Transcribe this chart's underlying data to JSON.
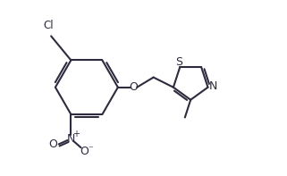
{
  "background_color": "#ffffff",
  "line_color": "#2c2c3e",
  "line_width": 1.5,
  "figsize": [
    3.21,
    1.97
  ],
  "dpi": 100,
  "xlim": [
    0,
    10
  ],
  "ylim": [
    0,
    6.15
  ]
}
